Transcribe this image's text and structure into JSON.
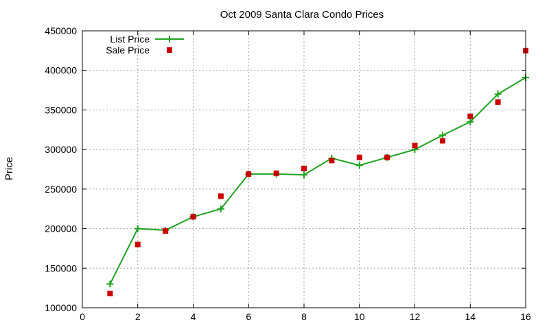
{
  "chart_data": {
    "type": "line",
    "title": "Oct 2009 Santa Clara Condo Prices",
    "xlabel": "",
    "ylabel": "Price",
    "xlim": [
      0,
      16
    ],
    "ylim": [
      100000,
      450000
    ],
    "x_ticks": [
      0,
      2,
      4,
      6,
      8,
      10,
      12,
      14,
      16
    ],
    "y_ticks": [
      100000,
      150000,
      200000,
      250000,
      300000,
      350000,
      400000,
      450000
    ],
    "grid": true,
    "legend_position": "top-left",
    "series": [
      {
        "name": "List Price",
        "style": "line+plus",
        "color": "#1ea31e",
        "x": [
          1,
          2,
          3,
          4,
          5,
          6,
          7,
          8,
          9,
          10,
          11,
          12,
          13,
          14,
          15,
          16
        ],
        "y": [
          130000,
          200000,
          198000,
          215000,
          225000,
          269000,
          269000,
          268000,
          289000,
          280000,
          290000,
          300000,
          318000,
          335000,
          370000,
          391000
        ]
      },
      {
        "name": "Sale Price",
        "style": "square-markers",
        "color": "#cc0000",
        "x": [
          1,
          2,
          3,
          4,
          5,
          6,
          7,
          8,
          9,
          10,
          11,
          12,
          13,
          14,
          15,
          16
        ],
        "y": [
          118000,
          180000,
          197000,
          215000,
          241000,
          269000,
          270000,
          276000,
          286000,
          290000,
          290000,
          305000,
          311000,
          342000,
          360000,
          425000
        ]
      }
    ]
  }
}
